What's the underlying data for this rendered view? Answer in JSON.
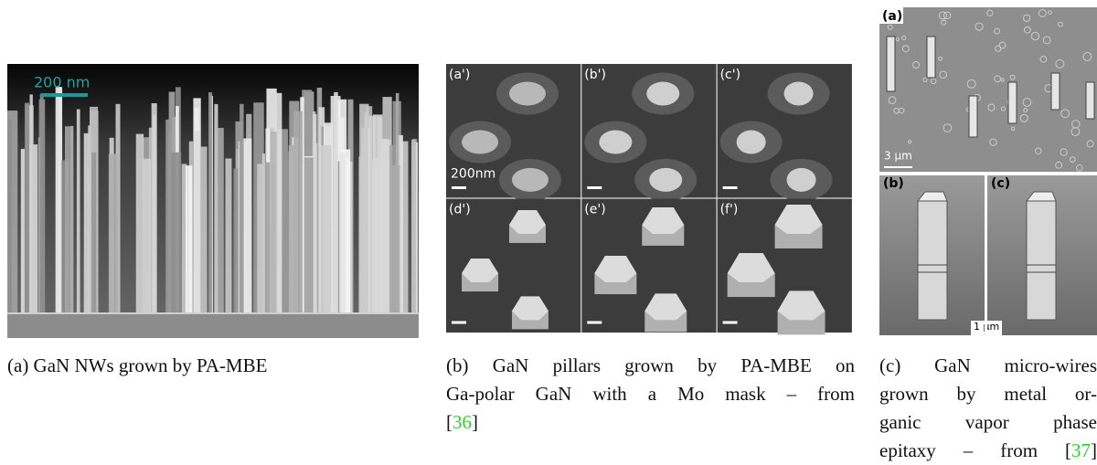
{
  "figure": {
    "panel_a": {
      "scale_label": "200 nm",
      "caption": {
        "lines": [],
        "last": "(a) GaN NWs grown by PA-MBE",
        "ref": null,
        "close": null
      }
    },
    "panel_b": {
      "sub_labels": [
        "(a')",
        "(b')",
        "(c')",
        "(d')",
        "(e')",
        "(f')"
      ],
      "scale_label": "200nm",
      "caption": {
        "lines": [
          "(b) GaN pillars grown by PA-MBE on",
          "Ga-polar GaN with a Mo mask – from"
        ],
        "last": "[",
        "ref": "36",
        "close": "]"
      }
    },
    "panel_c": {
      "sub_labels": [
        "(a)",
        "(b)",
        "(c)"
      ],
      "scale_top": "3 μm",
      "scale_bottom": "1 μm",
      "caption": {
        "lines": [
          "(c) GaN micro-wires",
          "grown by metal or-",
          "ganic vapor phase"
        ],
        "last": "epitaxy – from [",
        "ref": "37",
        "close": "]"
      }
    }
  }
}
